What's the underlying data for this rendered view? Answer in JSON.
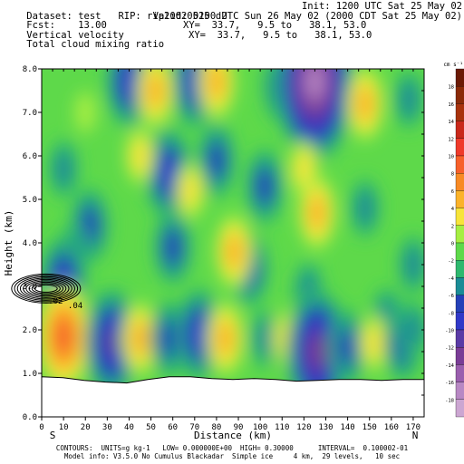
{
  "header": {
    "dataset_line": "Dataset: test   RIP: rip20020525 d2",
    "init": "Init: 1200 UTC Sat 25 May 02",
    "fcst": "Fcst:    13.00",
    "valid": "Valid: 0100 UTC Sun 26 May 02 (2000 CDT Sat 25 May 02)",
    "field1": "Vertical velocity",
    "xy1": "XY=  33.7,   9.5 to   38.1, 53.0",
    "field2": "Total cloud mixing ratio",
    "xy2": "XY=  33.7,   9.5 to   38.1, 53.0"
  },
  "footer": {
    "line1": "CONTOURS:  UNITS=g kg-1   LOW= 0.000000E+00  HIGH= 0.30000      INTERVAL=  0.100002-01",
    "line2": "Model info: V3.5.0 No Cumulus Blackadar  Simple ice     4 km,  29 levels,   10 sec"
  },
  "chart_data": {
    "type": "heatmap",
    "xlabel": "Distance (km)",
    "ylabel": "Height (km)",
    "xlim": [
      0,
      175
    ],
    "ylim": [
      0,
      8
    ],
    "x_ticks": [
      0,
      10,
      20,
      30,
      40,
      50,
      60,
      70,
      80,
      90,
      100,
      110,
      120,
      130,
      140,
      150,
      160,
      170
    ],
    "y_ticks": [
      "0.0",
      "1.0",
      "2.0",
      "3.0",
      "4.0",
      "5.0",
      "6.0",
      "7.0",
      "8.0"
    ],
    "endpoint_left": "S",
    "endpoint_right": "N",
    "colorbar_unit": "cm s⁻¹",
    "colorbar_levels": [
      18,
      16,
      14,
      12,
      10,
      8,
      6,
      4,
      2,
      0,
      -2,
      -4,
      -6,
      -8,
      -10,
      -12,
      -14,
      -16,
      -18
    ],
    "colorbar_colors": [
      "#6b1a05",
      "#8a2a08",
      "#a8320c",
      "#c9281a",
      "#ef3a2a",
      "#f7602a",
      "#f88a24",
      "#fbb32a",
      "#f7e43a",
      "#a6ee42",
      "#5ed94a",
      "#2eb86e",
      "#1a8c96",
      "#2440b8",
      "#3038c8",
      "#5a3aa6",
      "#7a3c96",
      "#9a5eae",
      "#b888c4",
      "#cca6d2"
    ],
    "cloud_labels": [
      ".02",
      ".04"
    ],
    "terrain_height_km": [
      0.92,
      0.9,
      0.84,
      0.8,
      0.78,
      0.86,
      0.92,
      0.92,
      0.88,
      0.86,
      0.88,
      0.86,
      0.82,
      0.84,
      0.86,
      0.86,
      0.84,
      0.86,
      0.86
    ],
    "anomalies": [
      {
        "x": 40,
        "y": 7.7,
        "v": -8
      },
      {
        "x": 70,
        "y": 7.7,
        "v": -8
      },
      {
        "x": 110,
        "y": 7.6,
        "v": -6
      },
      {
        "x": 125,
        "y": 7.7,
        "v": -16
      },
      {
        "x": 52,
        "y": 7.5,
        "v": 6
      },
      {
        "x": 80,
        "y": 7.7,
        "v": 6
      },
      {
        "x": 148,
        "y": 7.2,
        "v": 6
      },
      {
        "x": 168,
        "y": 7.3,
        "v": -4
      },
      {
        "x": 20,
        "y": 7.0,
        "v": 2
      },
      {
        "x": 58,
        "y": 5.6,
        "v": -8
      },
      {
        "x": 80,
        "y": 5.9,
        "v": -6
      },
      {
        "x": 102,
        "y": 5.3,
        "v": -6
      },
      {
        "x": 45,
        "y": 6.0,
        "v": 4
      },
      {
        "x": 68,
        "y": 5.2,
        "v": 4
      },
      {
        "x": 120,
        "y": 5.7,
        "v": 4
      },
      {
        "x": 10,
        "y": 5.7,
        "v": -4
      },
      {
        "x": 22,
        "y": 4.4,
        "v": -6
      },
      {
        "x": 15,
        "y": 3.8,
        "v": -4
      },
      {
        "x": 60,
        "y": 3.9,
        "v": -6
      },
      {
        "x": 95,
        "y": 3.4,
        "v": -6
      },
      {
        "x": 88,
        "y": 3.8,
        "v": 6
      },
      {
        "x": 126,
        "y": 4.7,
        "v": 6
      },
      {
        "x": 148,
        "y": 4.8,
        "v": -4
      },
      {
        "x": 170,
        "y": 3.5,
        "v": -4
      },
      {
        "x": 122,
        "y": 2.9,
        "v": -4
      },
      {
        "x": 158,
        "y": 2.3,
        "v": -4
      },
      {
        "x": 10,
        "y": 3.1,
        "v": -8
      },
      {
        "x": 10,
        "y": 1.85,
        "v": 10
      },
      {
        "x": 32,
        "y": 1.7,
        "v": -10
      },
      {
        "x": 45,
        "y": 1.8,
        "v": 6
      },
      {
        "x": 58,
        "y": 1.8,
        "v": -6
      },
      {
        "x": 72,
        "y": 1.9,
        "v": -8
      },
      {
        "x": 84,
        "y": 1.8,
        "v": 6
      },
      {
        "x": 102,
        "y": 1.8,
        "v": -4
      },
      {
        "x": 112,
        "y": 1.8,
        "v": 4
      },
      {
        "x": 126,
        "y": 1.5,
        "v": -12
      },
      {
        "x": 140,
        "y": 1.6,
        "v": -6
      },
      {
        "x": 152,
        "y": 1.7,
        "v": 4
      },
      {
        "x": 165,
        "y": 1.7,
        "v": -6
      },
      {
        "x": 170,
        "y": 2.0,
        "v": -4
      }
    ],
    "background": 0
  }
}
